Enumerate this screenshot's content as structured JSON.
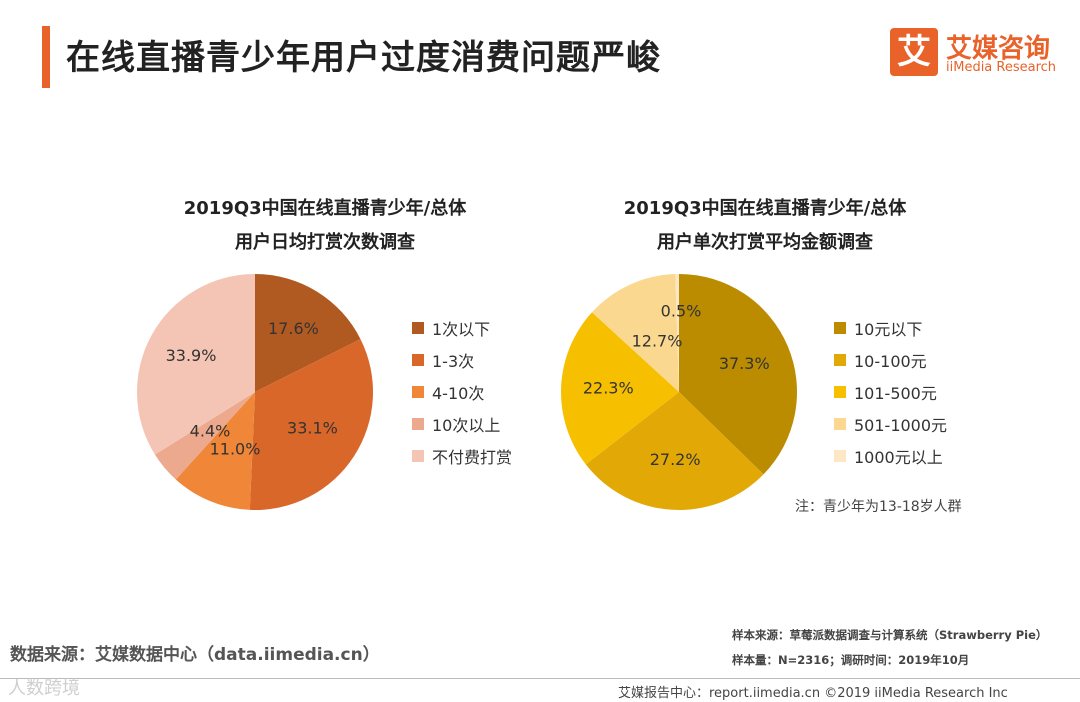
{
  "header": {
    "title": "在线直播青少年用户过度消费问题严峻",
    "logo_mark": "艾",
    "logo_cn": "艾媒咨询",
    "logo_en": "iiMedia Research"
  },
  "chart_data": [
    {
      "type": "pie",
      "title_line1": "2019Q3中国在线直播青少年/总体",
      "title_line2": "用户日均打赏次数调查",
      "labels": [
        "1次以下",
        "1-3次",
        "4-10次",
        "10次以上",
        "不付费打赏"
      ],
      "values": [
        17.6,
        33.1,
        11.0,
        4.4,
        33.9
      ],
      "value_labels": [
        "17.6%",
        "33.1%",
        "11.0%",
        "4.4%",
        "33.9%"
      ],
      "colors": [
        "#b05a22",
        "#d9672a",
        "#ef8638",
        "#eca98d",
        "#f4c4b4"
      ]
    },
    {
      "type": "pie",
      "title_line1": "2019Q3中国在线直播青少年/总体",
      "title_line2": "用户单次打赏平均金额调查",
      "labels": [
        "10元以下",
        "10-100元",
        "101-500元",
        "501-1000元",
        "1000元以上"
      ],
      "values": [
        37.3,
        27.2,
        22.3,
        12.7,
        0.5
      ],
      "value_labels": [
        "37.3%",
        "27.2%",
        "22.3%",
        "12.7%",
        "0.5%"
      ],
      "colors": [
        "#bb8c00",
        "#e2a906",
        "#f6c000",
        "#fbd890",
        "#fde7c4"
      ]
    }
  ],
  "note": "注：青少年为13-18岁人群",
  "source": "数据来源：艾媒数据中心（data.iimedia.cn）",
  "sample_source": "样本来源：草莓派数据调查与计算系统（Strawberry Pie）",
  "sample_size": "样本量：N=2316；调研时间：2019年10月",
  "footer": "艾媒报告中心：report.iimedia.cn  ©2019  iiMedia Research Inc",
  "watermark": "人数跨境"
}
